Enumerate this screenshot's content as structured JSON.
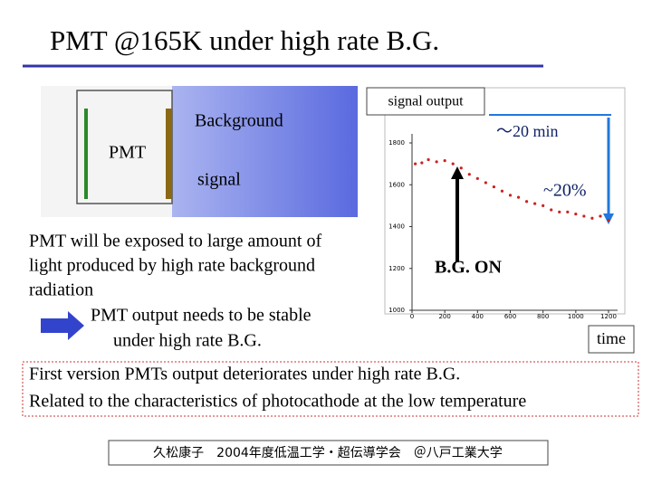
{
  "title": "PMT @165K under high rate B.G.",
  "figure": {
    "background": "Background",
    "pmt": "PMT",
    "signal": "signal"
  },
  "plot": {
    "signal_output": "signal output",
    "duration": "～20 min",
    "drop": "~20%",
    "bg_on": "B.G. ON",
    "x_label": "time",
    "xlim": [
      0,
      1200
    ],
    "ylim": [
      1000,
      1800
    ],
    "xticks": [
      0,
      200,
      400,
      600,
      800,
      1000,
      1200
    ],
    "yticks": [
      1000,
      1200,
      1400,
      1600,
      1800
    ],
    "x": [
      20,
      60,
      100,
      150,
      200,
      250,
      300,
      350,
      400,
      450,
      500,
      550,
      600,
      650,
      700,
      750,
      800,
      850,
      900,
      950,
      1000,
      1050,
      1100,
      1150,
      1200
    ],
    "values": [
      1700,
      1705,
      1720,
      1710,
      1715,
      1700,
      1680,
      1650,
      1630,
      1610,
      1590,
      1570,
      1550,
      1540,
      1520,
      1510,
      1500,
      1480,
      1470,
      1470,
      1460,
      1450,
      1440,
      1450,
      1430
    ],
    "color": "#cc2222"
  },
  "body": {
    "lines": [
      "PMT will be exposed to large amount of",
      "light produced by  high rate background",
      "radiation"
    ],
    "conclusion": [
      "PMT output needs to be stable",
      "under high rate B.G."
    ]
  },
  "note": [
    "First version PMTs output deteriorates under high rate B.G.",
    "Related to the characteristics of photocathode at the low temperature"
  ],
  "footer": "久松康子　2004年度低温工学・超伝導学会　＠八戸工業大学"
}
